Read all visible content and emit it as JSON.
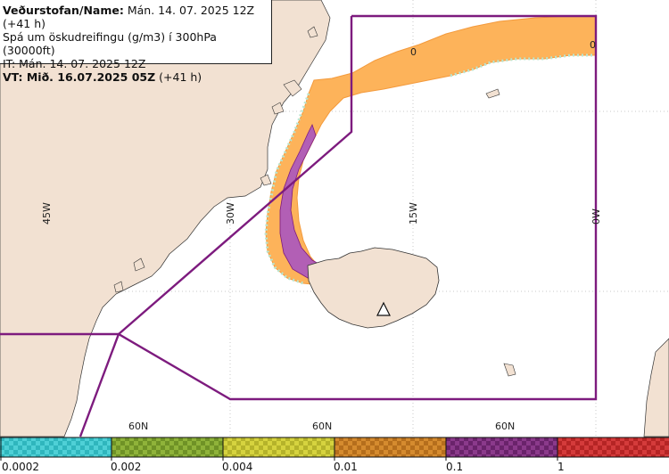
{
  "info": {
    "line1_label": "Veðurstofan/Name:",
    "line1_value": " Mán. 14. 07. 2025 12Z (+41 h)",
    "line2": "Spá um öskudreifingu (g/m3) í 300hPa (30000ft)",
    "line3": "IT: Mán. 14. 07. 2025 12Z",
    "line4_label": "VT: Mið. 16.07.2025 05Z",
    "line4_value": " (+41 h)"
  },
  "longitude_labels": [
    "45W",
    "30W",
    "15W",
    "0W"
  ],
  "latitude_labels": [
    "60N",
    "60N",
    "60N"
  ],
  "zero_markers": [
    "0",
    "0"
  ],
  "legend": {
    "ticks": [
      "0.0002",
      "0.002",
      "0.004",
      "0.01",
      "0.1",
      "1"
    ],
    "colors": {
      "cyan": "#4fd0d6",
      "olive": "#8fb33a",
      "yellow": "#cfcc3a",
      "orange": "#d58b2f",
      "purple": "#8b3a8b",
      "red": "#d43b3b"
    }
  },
  "map_colors": {
    "land": "#f2e1d2",
    "sea": "#ffffff",
    "ash_low": "#fdb35a",
    "ash_mid": "#f39a3c",
    "ash_high": "#b25fb5",
    "boundary": "#7d1b7e"
  }
}
